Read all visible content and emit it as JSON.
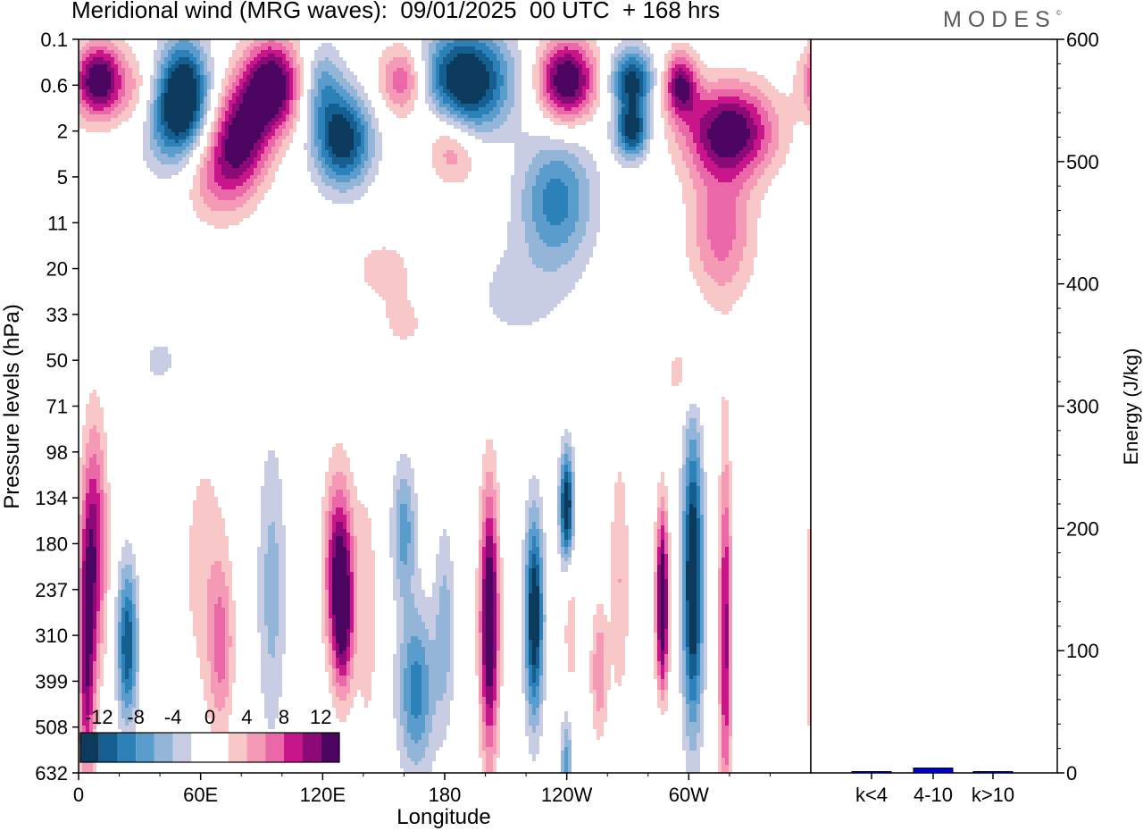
{
  "header": {
    "title": "Meridional wind (MRG waves):  09/01/2025  00 UTC  + 168 hrs",
    "brand": "MODES",
    "brand_mark": "©"
  },
  "chart_data": [
    {
      "type": "heatmap",
      "title": "Meridional wind (MRG waves):  09/01/2025  00 UTC  + 168 hrs",
      "xlabel": "Longitude",
      "ylabel": "Pressure levels (hPa)",
      "x_ticks": [
        "0",
        "60E",
        "120E",
        "180",
        "120W",
        "60W"
      ],
      "y_levels": [
        "0.1",
        "0.6",
        "2",
        "5",
        "11",
        "20",
        "33",
        "50",
        "71",
        "98",
        "134",
        "180",
        "237",
        "310",
        "399",
        "508",
        "632"
      ],
      "colorbar": {
        "labels": [
          "-12",
          "-8",
          "-4",
          "0",
          "4",
          "8",
          "12"
        ],
        "levels": [
          -14,
          -12,
          -10,
          -8,
          -6,
          -4,
          -2,
          0,
          2,
          4,
          6,
          8,
          10,
          12,
          14
        ],
        "colors": [
          "#0b3a5c",
          "#145f8f",
          "#2c82b8",
          "#5a9ccb",
          "#93b6d8",
          "#c9cde3",
          "#ffffff",
          "#ffffff",
          "#f8c7c7",
          "#f59ab6",
          "#ea68a8",
          "#c7158a",
          "#8c0a78",
          "#4b0560"
        ]
      },
      "blobs": [
        {
          "lon": 10,
          "lev": 0.9,
          "w": 12,
          "h": 0.8,
          "v": 15
        },
        {
          "lon": 30,
          "lev": 1.2,
          "w": 10,
          "h": 0.9,
          "v": 4
        },
        {
          "lon": 42,
          "lev": 1.8,
          "w": 14,
          "h": 1.1,
          "v": -6
        },
        {
          "lon": 52,
          "lev": 1.2,
          "w": 12,
          "h": 1.2,
          "v": -15
        },
        {
          "lon": 68,
          "lev": 3.0,
          "w": 16,
          "h": 1.0,
          "v": 6
        },
        {
          "lon": 80,
          "lev": 2.1,
          "w": 14,
          "h": 1.1,
          "v": 12
        },
        {
          "lon": 95,
          "lev": 1.0,
          "w": 14,
          "h": 1.0,
          "v": 15
        },
        {
          "lon": 120,
          "lev": 1.0,
          "w": 10,
          "h": 0.9,
          "v": -6
        },
        {
          "lon": 130,
          "lev": 2.2,
          "w": 14,
          "h": 1.0,
          "v": -14
        },
        {
          "lon": 160,
          "lev": 0.9,
          "w": 12,
          "h": 0.8,
          "v": 9
        },
        {
          "lon": 190,
          "lev": 0.9,
          "w": 22,
          "h": 1.1,
          "v": -16
        },
        {
          "lon": 178,
          "lev": 1.8,
          "w": 12,
          "h": 0.8,
          "v": 3
        },
        {
          "lon": 185,
          "lev": 2.5,
          "w": 12,
          "h": 0.7,
          "v": 5
        },
        {
          "lon": 240,
          "lev": 0.9,
          "w": 14,
          "h": 0.9,
          "v": 15
        },
        {
          "lon": 235,
          "lev": 3.5,
          "w": 18,
          "h": 1.4,
          "v": -9
        },
        {
          "lon": 272,
          "lev": 0.9,
          "w": 10,
          "h": 0.7,
          "v": -13
        },
        {
          "lon": 272,
          "lev": 2.0,
          "w": 8,
          "h": 0.6,
          "v": -13
        },
        {
          "lon": 296,
          "lev": 1.0,
          "w": 8,
          "h": 0.7,
          "v": 12
        },
        {
          "lon": 320,
          "lev": 2.0,
          "w": 22,
          "h": 1.0,
          "v": 14
        },
        {
          "lon": 316,
          "lev": 4.2,
          "w": 16,
          "h": 1.5,
          "v": 7
        },
        {
          "lon": 215,
          "lev": 5.6,
          "w": 28,
          "h": 1.3,
          "v": -2.5
        },
        {
          "lon": 150,
          "lev": 5.0,
          "w": 16,
          "h": 0.7,
          "v": 3
        },
        {
          "lon": 160,
          "lev": 6.2,
          "w": 14,
          "h": 0.7,
          "v": 2.5
        },
        {
          "lon": 300,
          "lev": 7.3,
          "w": 14,
          "h": 0.8,
          "v": 3
        },
        {
          "lon": 40,
          "lev": 7.0,
          "w": 12,
          "h": 0.7,
          "v": -2.5
        },
        {
          "lon": 8,
          "lev": 11,
          "w": 6,
          "h": 2.6,
          "v": 10
        },
        {
          "lon": 4,
          "lev": 13.5,
          "w": 4,
          "h": 2.8,
          "v": 11
        },
        {
          "lon": 24,
          "lev": 13.2,
          "w": 5,
          "h": 1.7,
          "v": -12
        },
        {
          "lon": 62,
          "lev": 11.5,
          "w": 12,
          "h": 3.0,
          "v": 3
        },
        {
          "lon": 70,
          "lev": 13.3,
          "w": 6,
          "h": 1.8,
          "v": 6
        },
        {
          "lon": 95,
          "lev": 12.0,
          "w": 7,
          "h": 3.2,
          "v": -5
        },
        {
          "lon": 128,
          "lev": 11.5,
          "w": 7,
          "h": 2.0,
          "v": 12
        },
        {
          "lon": 130,
          "lev": 12.8,
          "w": 5,
          "h": 1.5,
          "v": 9
        },
        {
          "lon": 142,
          "lev": 12.5,
          "w": 6,
          "h": 3.2,
          "v": 3
        },
        {
          "lon": 160,
          "lev": 10.7,
          "w": 6,
          "h": 1.5,
          "v": -7
        },
        {
          "lon": 166,
          "lev": 14.2,
          "w": 9,
          "h": 1.8,
          "v": -9
        },
        {
          "lon": 180,
          "lev": 12.8,
          "w": 5,
          "h": 2.2,
          "v": -5
        },
        {
          "lon": 202,
          "lev": 12.7,
          "w": 4.5,
          "h": 2.8,
          "v": 16
        },
        {
          "lon": 224,
          "lev": 12.6,
          "w": 4.5,
          "h": 2.2,
          "v": -15
        },
        {
          "lon": 240,
          "lev": 10.2,
          "w": 3.5,
          "h": 1.2,
          "v": -15
        },
        {
          "lon": 242,
          "lev": 12.8,
          "w": 4,
          "h": 2.0,
          "v": 3
        },
        {
          "lon": 266,
          "lev": 11.8,
          "w": 5,
          "h": 2.8,
          "v": 4
        },
        {
          "lon": 256,
          "lev": 13.8,
          "w": 4,
          "h": 1.4,
          "v": 6
        },
        {
          "lon": 240,
          "lev": 15.8,
          "w": 3,
          "h": 1.2,
          "v": -7
        },
        {
          "lon": 287,
          "lev": 12.3,
          "w": 3,
          "h": 2.0,
          "v": 16
        },
        {
          "lon": 302,
          "lev": 11.8,
          "w": 5,
          "h": 3.2,
          "v": -16
        },
        {
          "lon": 286,
          "lev": 15.4,
          "w": 3,
          "h": 1.0,
          "v": -3
        },
        {
          "lon": 318,
          "lev": 13.0,
          "w": 3,
          "h": 3.8,
          "v": 11
        }
      ]
    },
    {
      "type": "bar",
      "ylabel": "Energy (J/kg)",
      "categories": [
        "k<4",
        "4-10",
        "k>10"
      ],
      "values": [
        1,
        4,
        1
      ],
      "ylim": [
        0,
        600
      ],
      "y_ticks": [
        "0",
        "100",
        "200",
        "300",
        "400",
        "500",
        "600"
      ],
      "color": "#0000cc"
    }
  ]
}
